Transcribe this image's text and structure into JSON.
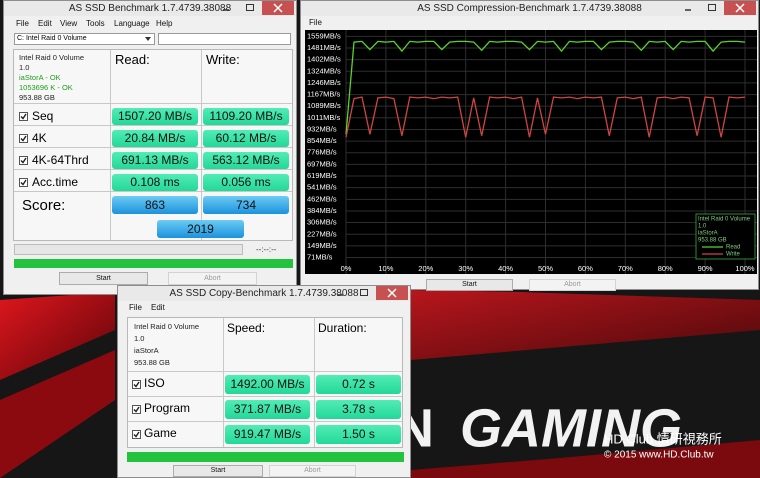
{
  "background": {
    "brand_left": "N",
    "brand_right": "GAMING",
    "watermark": "HD.Club 情研視務所",
    "copyright": "© 2015  www.HD.Club.tw"
  },
  "benchmark_window": {
    "title": "AS SSD Benchmark 1.7.4739.38088",
    "menu": [
      "File",
      "Edit",
      "View",
      "Tools",
      "Language",
      "Help"
    ],
    "drive": "C: Intel Raid 0 Volume",
    "info": [
      "Intel Raid 0 Volume",
      "1.0",
      "iaStorA - OK",
      "1053696 K - OK",
      "953.88 GB"
    ],
    "headers": [
      "Read:",
      "Write:"
    ],
    "rows": [
      {
        "label": "Seq",
        "read": "1507.20 MB/s",
        "write": "1109.20 MB/s"
      },
      {
        "label": "4K",
        "read": "20.84 MB/s",
        "write": "60.12 MB/s"
      },
      {
        "label": "4K-64Thrd",
        "read": "691.13 MB/s",
        "write": "563.12 MB/s"
      },
      {
        "label": "Acc.time",
        "read": "0.108 ms",
        "write": "0.056 ms"
      }
    ],
    "score_label": "Score:",
    "score_read": 863,
    "score_write": 734,
    "score_total": 2019,
    "time": "--:--:--",
    "buttons": [
      "Start",
      "Abort"
    ]
  },
  "compression_window": {
    "title": "AS SSD Compression-Benchmark 1.7.4739.38088",
    "menu": [
      "File"
    ],
    "legend_info": [
      "Intel Raid 0 Volume",
      "1.0",
      "iaStorA",
      "953.88 GB"
    ],
    "buttons": [
      "Start",
      "Abort"
    ],
    "chart_data": {
      "type": "line",
      "grid": true,
      "x": [
        0,
        2,
        4,
        6,
        8,
        10,
        12,
        14,
        16,
        18,
        20,
        22,
        24,
        26,
        28,
        30,
        32,
        34,
        36,
        38,
        40,
        42,
        44,
        46,
        48,
        50,
        52,
        54,
        56,
        58,
        60,
        62,
        64,
        66,
        68,
        70,
        72,
        74,
        76,
        78,
        80,
        82,
        84,
        86,
        88,
        90,
        92,
        94,
        96,
        98,
        100
      ],
      "xlim": [
        0,
        100
      ],
      "xticks": [
        {
          "value": 0,
          "label": "0%"
        },
        {
          "value": 10,
          "label": "10%"
        },
        {
          "value": 20,
          "label": "20%"
        },
        {
          "value": 30,
          "label": "30%"
        },
        {
          "value": 40,
          "label": "40%"
        },
        {
          "value": 50,
          "label": "50%"
        },
        {
          "value": 60,
          "label": "60%"
        },
        {
          "value": 70,
          "label": "70%"
        },
        {
          "value": 80,
          "label": "80%"
        },
        {
          "value": 90,
          "label": "90%"
        },
        {
          "value": 100,
          "label": "100%"
        }
      ],
      "ylim": [
        0,
        1595
      ],
      "yticks": [
        {
          "value": 1559,
          "label": "1559MB/s"
        },
        {
          "value": 1481,
          "label": "1481MB/s"
        },
        {
          "value": 1402,
          "label": "1402MB/s"
        },
        {
          "value": 1324,
          "label": "1324MB/s"
        },
        {
          "value": 1246,
          "label": "1246MB/s"
        },
        {
          "value": 1167,
          "label": "1167MB/s"
        },
        {
          "value": 1089,
          "label": "1089MB/s"
        },
        {
          "value": 1011,
          "label": "1011MB/s"
        },
        {
          "value": 932,
          "label": "932MB/s"
        },
        {
          "value": 854,
          "label": "854MB/s"
        },
        {
          "value": 776,
          "label": "776MB/s"
        },
        {
          "value": 697,
          "label": "697MB/s"
        },
        {
          "value": 619,
          "label": "619MB/s"
        },
        {
          "value": 541,
          "label": "541MB/s"
        },
        {
          "value": 462,
          "label": "462MB/s"
        },
        {
          "value": 384,
          "label": "384MB/s"
        },
        {
          "value": 306,
          "label": "306MB/s"
        },
        {
          "value": 227,
          "label": "227MB/s"
        },
        {
          "value": 149,
          "label": "149MB/s"
        },
        {
          "value": 71,
          "label": "71MB/s"
        }
      ],
      "series": [
        {
          "name": "Read",
          "color": "#58d42a",
          "values": [
            900,
            1520,
            1525,
            1470,
            1525,
            1520,
            1525,
            1460,
            1525,
            1520,
            1525,
            1525,
            1470,
            1520,
            1525,
            1525,
            1520,
            1465,
            1525,
            1520,
            1525,
            1525,
            1520,
            1470,
            1525,
            1520,
            1525,
            1460,
            1525,
            1520,
            1525,
            1525,
            1470,
            1520,
            1525,
            1525,
            1520,
            1465,
            1525,
            1520,
            1525,
            1470,
            1525,
            1520,
            1525,
            1525,
            1460,
            1520,
            1525,
            1525,
            1520
          ]
        },
        {
          "name": "Write",
          "color": "#d04444",
          "values": [
            880,
            1140,
            1150,
            900,
            1145,
            1150,
            1140,
            890,
            1150,
            1145,
            1150,
            1140,
            1150,
            1145,
            1150,
            880,
            1145,
            890,
            1150,
            1145,
            1150,
            1140,
            1150,
            880,
            1145,
            900,
            1150,
            1145,
            1150,
            1140,
            1150,
            1145,
            1150,
            890,
            1145,
            1150,
            1140,
            1150,
            880,
            1145,
            1150,
            1140,
            1150,
            1145,
            890,
            1150,
            1145,
            880,
            1150,
            1145,
            1150
          ]
        }
      ]
    }
  },
  "copy_window": {
    "title": "AS SSD Copy-Benchmark 1.7.4739.38088",
    "menu": [
      "File",
      "Edit"
    ],
    "info": [
      "Intel Raid 0 Volume",
      "1.0",
      "iaStorA",
      "953.88 GB"
    ],
    "headers": [
      "Speed:",
      "Duration:"
    ],
    "rows": [
      {
        "label": "ISO",
        "speed": "1492.00 MB/s",
        "duration": "0.72 s"
      },
      {
        "label": "Program",
        "speed": "371.87 MB/s",
        "duration": "3.78 s"
      },
      {
        "label": "Game",
        "speed": "919.47 MB/s",
        "duration": "1.50 s"
      }
    ],
    "buttons": [
      "Start",
      "Abort"
    ]
  }
}
